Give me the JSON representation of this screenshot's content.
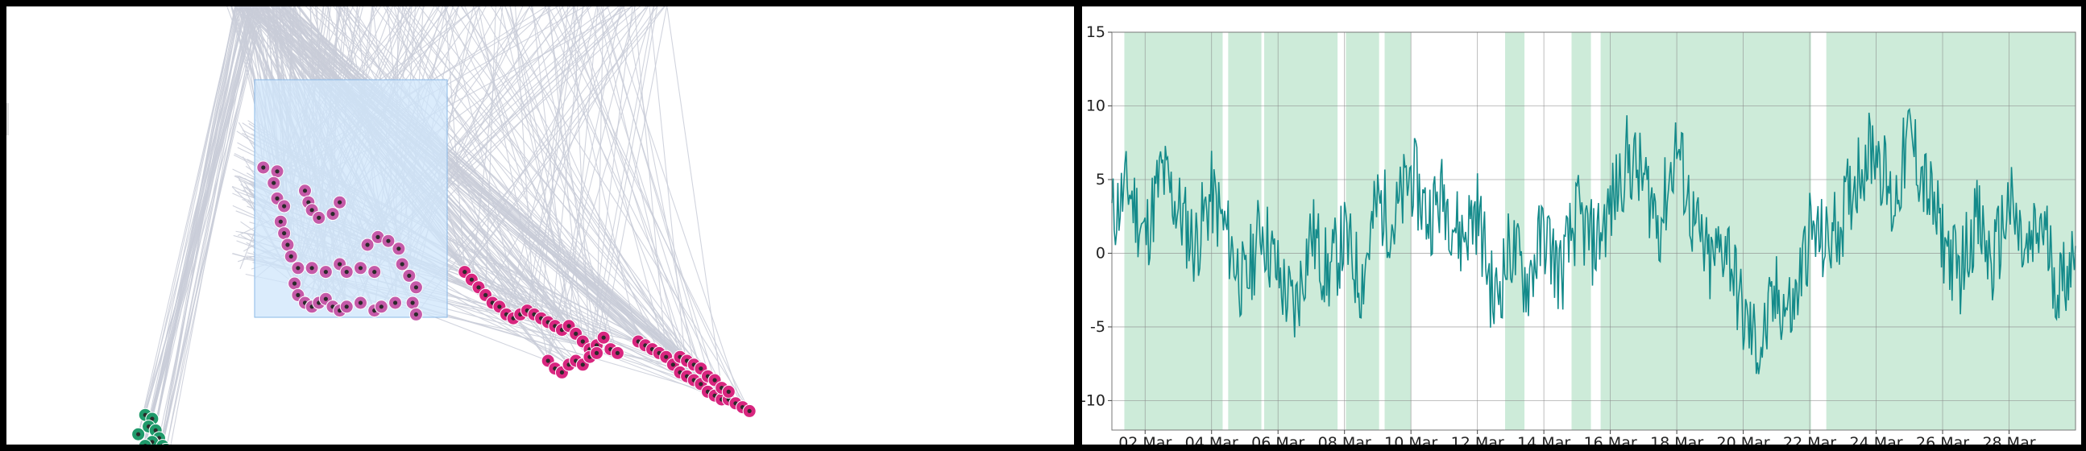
{
  "colors": {
    "edge": "#c9ccd8",
    "selection_fill": "#cfe6fb",
    "selection_stroke": "#8ab8e6",
    "magenta_node": "#d8267f",
    "magenta_node_light": "#c55aa8",
    "green_node": "#1f9a6b",
    "node_core": "#2a2a2a",
    "band_fill": "#cdebd9",
    "line": "#138a8a",
    "grid": "#8a8a8a"
  },
  "chart_data": [
    {
      "type": "scatter",
      "series": [
        {
          "values": [
            [
              0.19,
              0.25
            ],
            [
              0.21,
              0.26
            ],
            [
              0.205,
              0.29
            ],
            [
              0.21,
              0.33
            ],
            [
              0.22,
              0.35
            ],
            [
              0.215,
              0.39
            ],
            [
              0.22,
              0.42
            ],
            [
              0.225,
              0.45
            ],
            [
              0.23,
              0.48
            ],
            [
              0.24,
              0.51
            ],
            [
              0.235,
              0.55
            ],
            [
              0.24,
              0.58
            ],
            [
              0.25,
              0.6
            ],
            [
              0.26,
              0.61
            ],
            [
              0.27,
              0.6
            ],
            [
              0.28,
              0.59
            ],
            [
              0.29,
              0.61
            ],
            [
              0.3,
              0.62
            ],
            [
              0.31,
              0.61
            ],
            [
              0.33,
              0.6
            ],
            [
              0.35,
              0.62
            ],
            [
              0.36,
              0.61
            ],
            [
              0.38,
              0.6
            ],
            [
              0.25,
              0.31
            ],
            [
              0.255,
              0.34
            ],
            [
              0.26,
              0.36
            ],
            [
              0.27,
              0.38
            ],
            [
              0.29,
              0.37
            ],
            [
              0.3,
              0.34
            ],
            [
              0.34,
              0.45
            ],
            [
              0.355,
              0.43
            ],
            [
              0.37,
              0.44
            ],
            [
              0.385,
              0.46
            ],
            [
              0.39,
              0.5
            ],
            [
              0.4,
              0.53
            ],
            [
              0.41,
              0.56
            ],
            [
              0.405,
              0.6
            ],
            [
              0.41,
              0.63
            ],
            [
              0.26,
              0.51
            ],
            [
              0.28,
              0.52
            ],
            [
              0.3,
              0.5
            ],
            [
              0.31,
              0.52
            ],
            [
              0.33,
              0.51
            ],
            [
              0.35,
              0.52
            ],
            [
              0.48,
              0.52
            ],
            [
              0.49,
              0.54
            ],
            [
              0.5,
              0.56
            ],
            [
              0.51,
              0.58
            ],
            [
              0.52,
              0.6
            ],
            [
              0.53,
              0.61
            ],
            [
              0.54,
              0.63
            ],
            [
              0.55,
              0.64
            ],
            [
              0.56,
              0.63
            ],
            [
              0.57,
              0.62
            ],
            [
              0.58,
              0.63
            ],
            [
              0.59,
              0.64
            ],
            [
              0.6,
              0.65
            ],
            [
              0.61,
              0.66
            ],
            [
              0.62,
              0.67
            ],
            [
              0.63,
              0.66
            ],
            [
              0.64,
              0.68
            ],
            [
              0.65,
              0.7
            ],
            [
              0.66,
              0.72
            ],
            [
              0.67,
              0.71
            ],
            [
              0.68,
              0.69
            ],
            [
              0.69,
              0.72
            ],
            [
              0.7,
              0.73
            ],
            [
              0.6,
              0.75
            ],
            [
              0.61,
              0.77
            ],
            [
              0.62,
              0.78
            ],
            [
              0.63,
              0.76
            ],
            [
              0.64,
              0.75
            ],
            [
              0.65,
              0.76
            ],
            [
              0.66,
              0.74
            ],
            [
              0.67,
              0.73
            ],
            [
              0.73,
              0.7
            ],
            [
              0.74,
              0.71
            ],
            [
              0.75,
              0.72
            ],
            [
              0.76,
              0.73
            ],
            [
              0.77,
              0.74
            ],
            [
              0.78,
              0.76
            ],
            [
              0.79,
              0.78
            ],
            [
              0.8,
              0.79
            ],
            [
              0.81,
              0.8
            ],
            [
              0.82,
              0.81
            ],
            [
              0.83,
              0.83
            ],
            [
              0.84,
              0.84
            ],
            [
              0.85,
              0.85
            ],
            [
              0.86,
              0.85
            ],
            [
              0.87,
              0.86
            ],
            [
              0.88,
              0.87
            ],
            [
              0.89,
              0.88
            ],
            [
              0.79,
              0.74
            ],
            [
              0.8,
              0.75
            ],
            [
              0.81,
              0.76
            ],
            [
              0.82,
              0.77
            ],
            [
              0.83,
              0.79
            ],
            [
              0.84,
              0.8
            ],
            [
              0.85,
              0.82
            ],
            [
              0.86,
              0.83
            ]
          ]
        },
        {
          "values": [
            [
              0.02,
              0.89
            ],
            [
              0.03,
              0.9
            ],
            [
              0.025,
              0.92
            ],
            [
              0.035,
              0.93
            ],
            [
              0.04,
              0.95
            ],
            [
              0.03,
              0.96
            ],
            [
              0.045,
              0.97
            ],
            [
              0.05,
              0.98
            ],
            [
              0.04,
              0.99
            ],
            [
              0.055,
              0.985
            ],
            [
              0.06,
              0.995
            ],
            [
              0.02,
              0.97
            ],
            [
              0.01,
              0.94
            ],
            [
              0.015,
              0.99
            ]
          ]
        }
      ]
    },
    {
      "type": "area",
      "x_start": "2021-03-01",
      "x_end": "2021-03-30",
      "ylim": [
        -12,
        15
      ],
      "grid": true,
      "y_ticks": [
        "15",
        "10",
        "5",
        "0",
        "-5",
        "-10"
      ],
      "y_tick_values": [
        15,
        10,
        5,
        0,
        -5,
        -10
      ],
      "x_ticks": [
        "02 Mar",
        "04 Mar",
        "06 Mar",
        "08 Mar",
        "10 Mar",
        "12 Mar",
        "14 Mar",
        "16 Mar",
        "18 Mar",
        "20 Mar",
        "22 Mar",
        "24 Mar",
        "26 Mar",
        "28 Mar"
      ],
      "x_tick_values": [
        "2021-03-02",
        "2021-03-04",
        "2021-03-06",
        "2021-03-08",
        "2021-03-10",
        "2021-03-12",
        "2021-03-14",
        "2021-03-16",
        "2021-03-18",
        "2021-03-20",
        "2021-03-22",
        "2021-03-24",
        "2021-03-26",
        "2021-03-28"
      ],
      "bands": [
        [
          "2021-03-01T09:00",
          "2021-03-04T08:00"
        ],
        [
          "2021-03-04T12:00",
          "2021-03-05T12:00"
        ],
        [
          "2021-03-05T14:00",
          "2021-03-07T19:00"
        ],
        [
          "2021-03-08T01:00",
          "2021-03-09T01:00"
        ],
        [
          "2021-03-09T05:00",
          "2021-03-10T00:00"
        ],
        [
          "2021-03-12T20:00",
          "2021-03-13T10:00"
        ],
        [
          "2021-03-14T20:00",
          "2021-03-15T10:00"
        ],
        [
          "2021-03-15T17:00",
          "2021-03-22T01:00"
        ],
        [
          "2021-03-22T12:00",
          "2021-03-30T00:00"
        ]
      ],
      "series": [
        {
          "values": [
            [
              "2021-03-01",
              2.5
            ],
            [
              "2021-03-01T12:00",
              4.5
            ],
            [
              "2021-03-02",
              1.0
            ],
            [
              "2021-03-02T12:00",
              5.5
            ],
            [
              "2021-03-03",
              3.0
            ],
            [
              "2021-03-03T12:00",
              0.5
            ],
            [
              "2021-03-04",
              4.0
            ],
            [
              "2021-03-04T12:00",
              1.0
            ],
            [
              "2021-03-05",
              -2.5
            ],
            [
              "2021-03-05T12:00",
              2.0
            ],
            [
              "2021-03-06",
              -1.5
            ],
            [
              "2021-03-06T12:00",
              -4.0
            ],
            [
              "2021-03-07",
              1.5
            ],
            [
              "2021-03-07T12:00",
              -1.5
            ],
            [
              "2021-03-08",
              1.0
            ],
            [
              "2021-03-08T12:00",
              -2.0
            ],
            [
              "2021-03-09",
              3.5
            ],
            [
              "2021-03-09T12:00",
              2.0
            ],
            [
              "2021-03-10",
              5.5
            ],
            [
              "2021-03-10T12:00",
              2.5
            ],
            [
              "2021-03-11",
              4.0
            ],
            [
              "2021-03-11T12:00",
              1.0
            ],
            [
              "2021-03-12",
              3.0
            ],
            [
              "2021-03-12T12:00",
              -3.5
            ],
            [
              "2021-03-13",
              0.5
            ],
            [
              "2021-03-13T12:00",
              -2.0
            ],
            [
              "2021-03-14",
              1.5
            ],
            [
              "2021-03-14T12:00",
              -1.5
            ],
            [
              "2021-03-15",
              2.5
            ],
            [
              "2021-03-15T12:00",
              0.5
            ],
            [
              "2021-03-16",
              3.0
            ],
            [
              "2021-03-16T12:00",
              6.5
            ],
            [
              "2021-03-17",
              5.0
            ],
            [
              "2021-03-17T12:00",
              2.0
            ],
            [
              "2021-03-18",
              7.5
            ],
            [
              "2021-03-18T12:00",
              2.0
            ],
            [
              "2021-03-19",
              -1.0
            ],
            [
              "2021-03-19T12:00",
              1.0
            ],
            [
              "2021-03-20",
              -4.5
            ],
            [
              "2021-03-20T12:00",
              -6.5
            ],
            [
              "2021-03-21",
              -3.0
            ],
            [
              "2021-03-21T12:00",
              -4.0
            ],
            [
              "2021-03-22",
              1.5
            ],
            [
              "2021-03-22T12:00",
              0.5
            ],
            [
              "2021-03-23",
              2.5
            ],
            [
              "2021-03-23T12:00",
              6.0
            ],
            [
              "2021-03-24",
              7.5
            ],
            [
              "2021-03-24T12:00",
              3.0
            ],
            [
              "2021-03-25",
              8.0
            ],
            [
              "2021-03-25T12:00",
              4.5
            ],
            [
              "2021-03-26",
              1.0
            ],
            [
              "2021-03-26T12:00",
              -1.5
            ],
            [
              "2021-03-27",
              2.5
            ],
            [
              "2021-03-27T12:00",
              -1.0
            ],
            [
              "2021-03-28",
              3.5
            ],
            [
              "2021-03-28T12:00",
              -0.5
            ],
            [
              "2021-03-29",
              2.0
            ],
            [
              "2021-03-29T12:00",
              -2.5
            ],
            [
              "2021-03-30",
              0.5
            ]
          ]
        }
      ]
    }
  ]
}
